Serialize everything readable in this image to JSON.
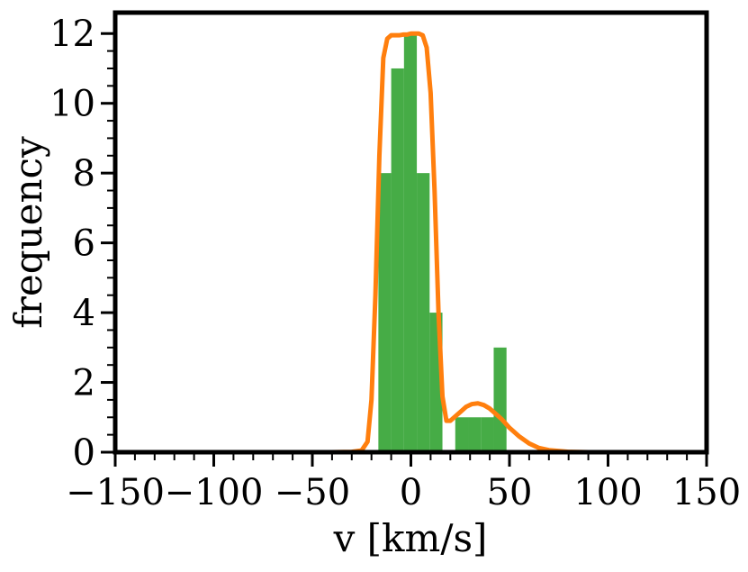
{
  "chart_data": {
    "type": "bar",
    "title": "",
    "xlabel": "v [km/s]",
    "ylabel": "frequency",
    "xlim": [
      -150,
      150
    ],
    "ylim": [
      0,
      12.6
    ],
    "grid": false,
    "legend": null,
    "xticks": [
      -150,
      -100,
      -50,
      0,
      50,
      100,
      150
    ],
    "xtick_labels": [
      "−150",
      "−100",
      "−50",
      "0",
      "50",
      "100",
      "150"
    ],
    "yticks": [
      0,
      2,
      4,
      6,
      8,
      10,
      12
    ],
    "ytick_labels": [
      "0",
      "2",
      "4",
      "6",
      "8",
      "10",
      "12"
    ],
    "histogram": {
      "color": "#2ca02c",
      "bins": [
        {
          "x0": -16.5,
          "x1": -10.0,
          "count": 8
        },
        {
          "x0": -10.0,
          "x1": -3.5,
          "count": 11
        },
        {
          "x0": -3.5,
          "x1": 3.0,
          "count": 12
        },
        {
          "x0": 3.0,
          "x1": 9.5,
          "count": 8
        },
        {
          "x0": 9.5,
          "x1": 16.0,
          "count": 4
        },
        {
          "x0": 16.0,
          "x1": 22.5,
          "count": 0
        },
        {
          "x0": 22.5,
          "x1": 29.0,
          "count": 1
        },
        {
          "x0": 29.0,
          "x1": 35.5,
          "count": 1
        },
        {
          "x0": 35.5,
          "x1": 42.0,
          "count": 1
        },
        {
          "x0": 42.0,
          "x1": 48.5,
          "count": 3
        }
      ]
    },
    "fit_curve": {
      "color": "#ff7f0e",
      "x": [
        -150,
        -40,
        -30,
        -25,
        -22,
        -20,
        -18,
        -16,
        -14,
        -12,
        -10,
        -8,
        -6,
        -4,
        -2,
        0,
        2,
        4,
        6,
        8,
        10,
        12,
        14,
        16,
        18,
        20,
        22,
        25,
        28,
        31,
        34,
        37,
        40,
        43,
        46,
        50,
        55,
        60,
        65,
        70,
        80,
        90,
        150
      ],
      "y": [
        0,
        0,
        0.01,
        0.05,
        0.3,
        1.5,
        4.5,
        8.5,
        11.3,
        11.85,
        11.95,
        11.95,
        11.95,
        11.97,
        11.97,
        12.0,
        12.0,
        12.0,
        11.95,
        11.6,
        10.3,
        7.5,
        4.0,
        1.6,
        0.9,
        0.9,
        1.0,
        1.15,
        1.3,
        1.38,
        1.4,
        1.35,
        1.25,
        1.1,
        0.95,
        0.7,
        0.45,
        0.25,
        0.12,
        0.06,
        0.01,
        0.0,
        0.0
      ]
    }
  }
}
